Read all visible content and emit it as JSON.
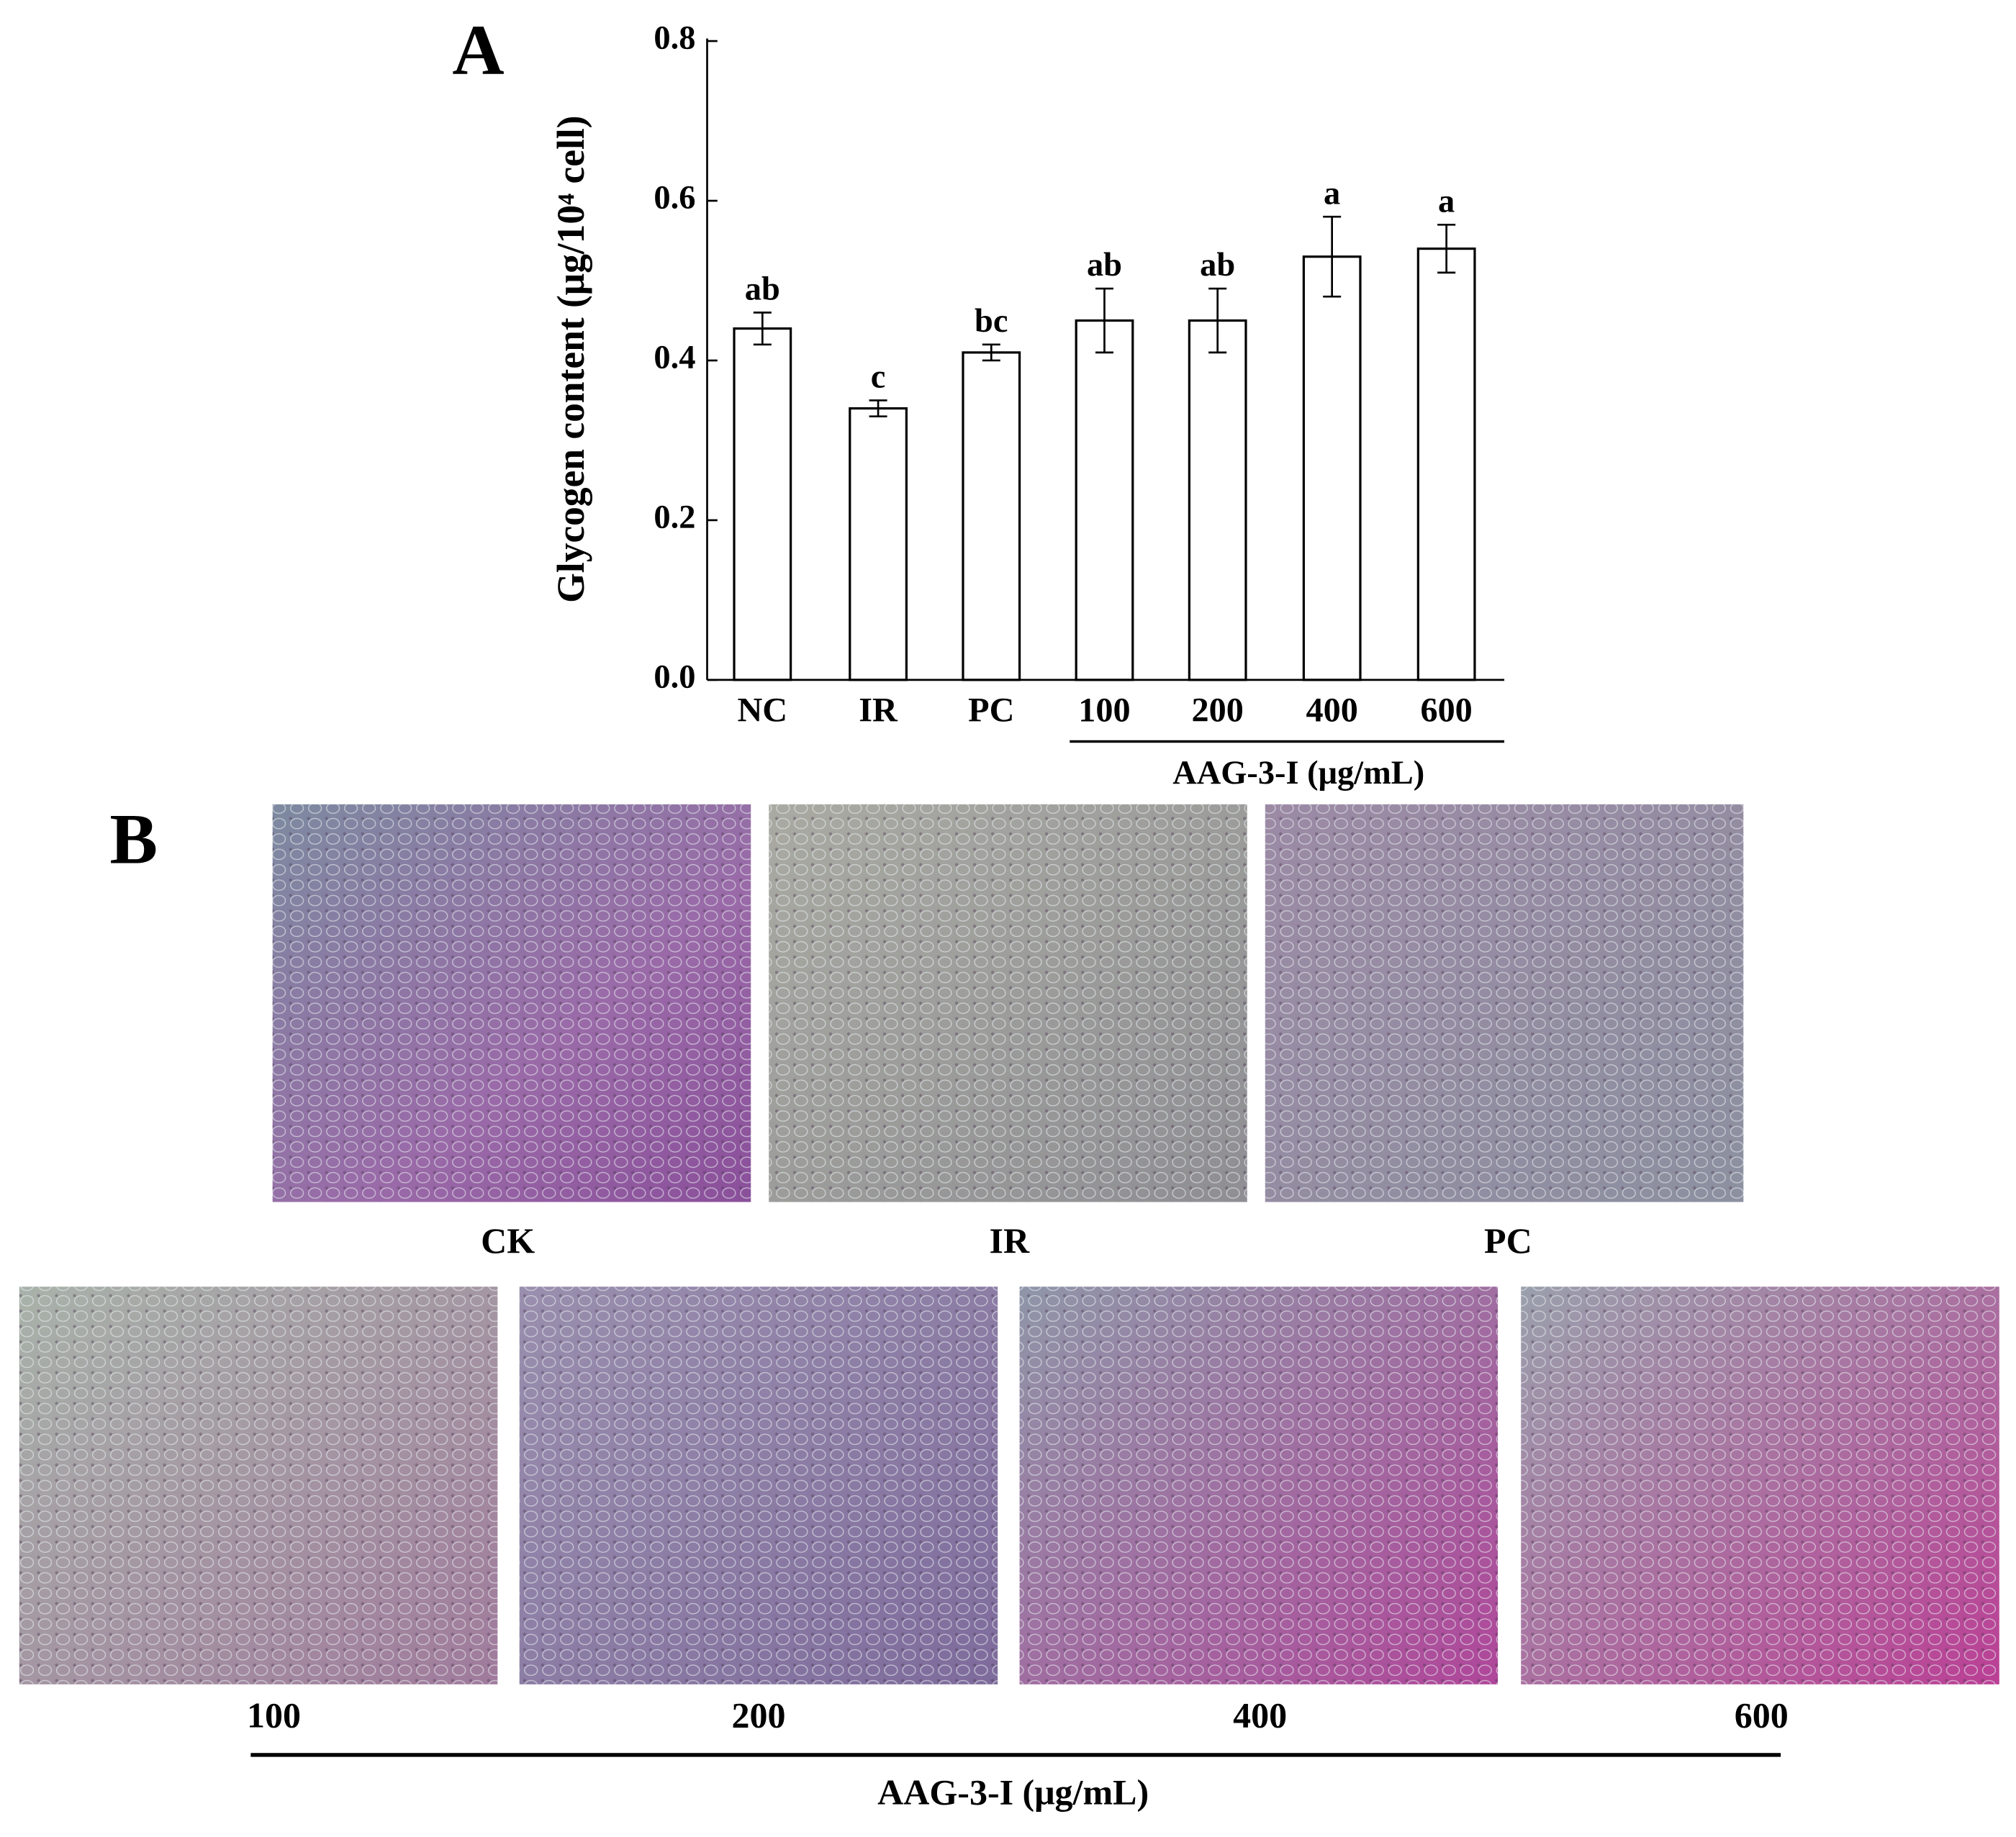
{
  "panel_labels": [
    "A",
    "B"
  ],
  "chart_data": {
    "type": "bar",
    "y_label": "Glycogen content (μg/10⁴ cell)",
    "categories": [
      "NC",
      "IR",
      "PC",
      "100",
      "200",
      "400",
      "600"
    ],
    "values": [
      0.44,
      0.34,
      0.41,
      0.45,
      0.45,
      0.53,
      0.54
    ],
    "errors": [
      0.02,
      0.01,
      0.01,
      0.04,
      0.04,
      0.05,
      0.03
    ],
    "annotations": [
      "ab",
      "c",
      "bc",
      "ab",
      "ab",
      "a",
      "a"
    ],
    "group_label": "AAG-3-I (μg/mL)",
    "color": "#ffffff",
    "ylim": [
      0,
      0.8
    ],
    "yticks": [
      {
        "value": 0,
        "label": "0.0"
      },
      0.2,
      0.4,
      0.6,
      0.8
    ]
  },
  "micrographs": {
    "labels": [
      "CK",
      "IR",
      "PC",
      "100",
      "200",
      "400",
      "600"
    ],
    "group_label": "AAG-3-I (μg/mL)"
  }
}
